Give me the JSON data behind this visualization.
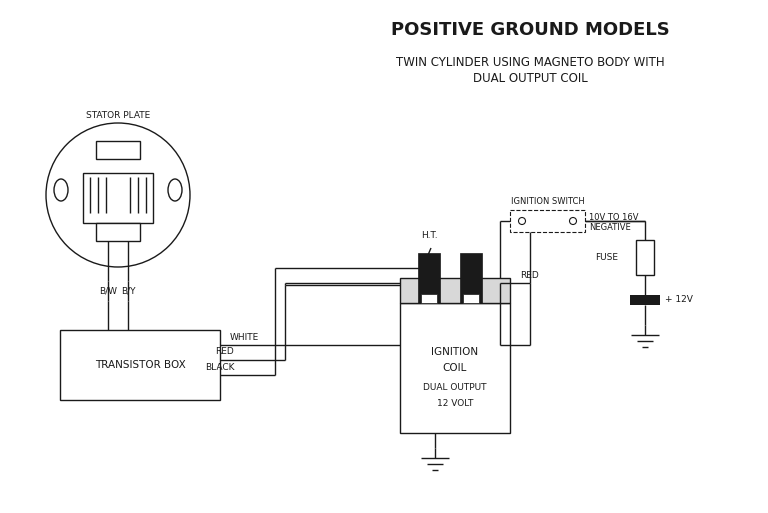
{
  "title1": "POSITIVE GROUND MODELS",
  "title2": "TWIN CYLINDER USING MAGNETO BODY WITH\nDUAL OUTPUT COIL",
  "bg_color": "#ffffff",
  "line_color": "#1a1a1a",
  "text_color": "#1a1a1a",
  "stator_label": "STATOR PLATE",
  "transistor_label": "TRANSISTOR BOX",
  "bw_label": "B/W",
  "by_label": "B/Y",
  "white_label": "WHITE",
  "red_label1": "RED",
  "black_label": "BLACK",
  "ht_label": "H.T.",
  "red_label2": "RED",
  "ignition_switch_label": "IGNITION SWITCH",
  "voltage_label": "10V TO 16V",
  "negative_label": "NEGATIVE",
  "fuse_label": "FUSE",
  "battery_label": "+ 12V",
  "coil_line1": "IGNITION",
  "coil_line2": "COIL",
  "coil_line3": "DUAL OUTPUT",
  "coil_line4": "12 VOLT"
}
